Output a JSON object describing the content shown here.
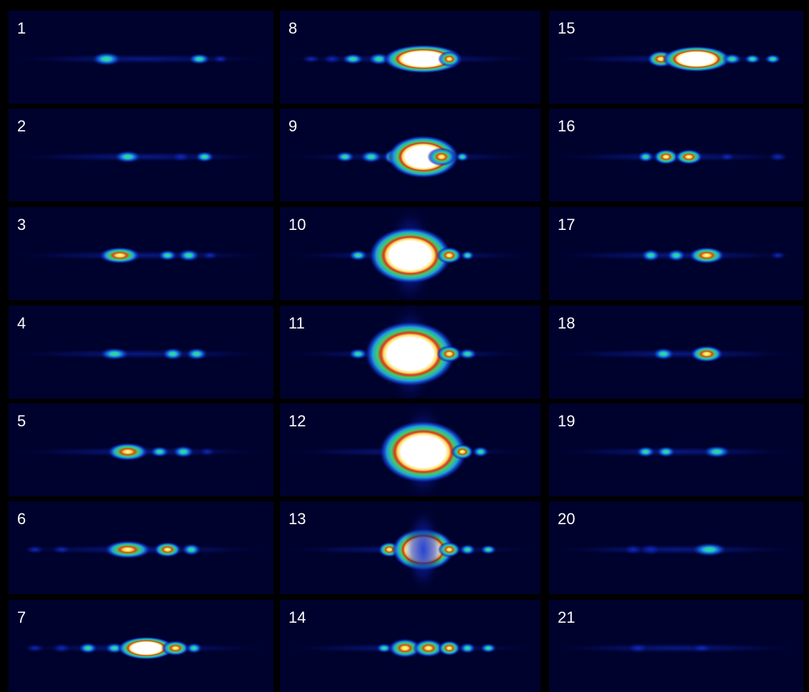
{
  "panels": [
    "1",
    "2",
    "3",
    "4",
    "5",
    "6",
    "7",
    "8",
    "9",
    "10",
    "11",
    "12",
    "13",
    "14",
    "15",
    "16",
    "17",
    "18",
    "19",
    "20",
    "21"
  ]
}
